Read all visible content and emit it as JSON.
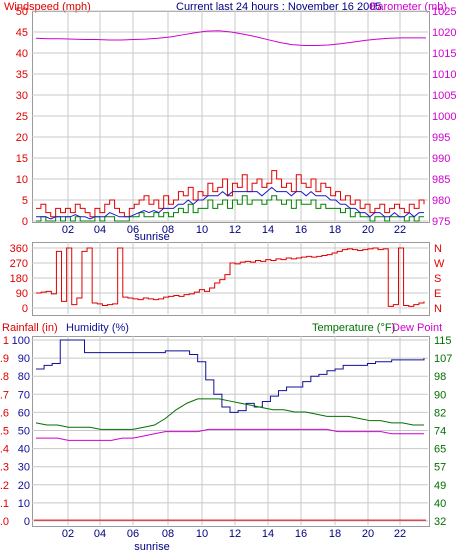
{
  "colors": {
    "wind": "#e00000",
    "baro": "#d000d0",
    "windavg": "#1a1acc",
    "windgust": "#008000",
    "dir": "#e00000",
    "rain": "#e00000",
    "humidity": "#10109a",
    "temperature": "#007000",
    "dewpoint": "#d000d0",
    "grid": "#c8c8c8",
    "tick": "#000080"
  },
  "chart_data": [
    {
      "type": "line",
      "title": "Current last 24 hours : November 16 2005",
      "ylabel": "Windspeed (mph)",
      "y2label": "Barometer (mb)",
      "xticks": [
        "02",
        "04",
        "06",
        "08",
        "10",
        "12",
        "14",
        "16",
        "18",
        "20",
        "22"
      ],
      "xmarker": "sunrise",
      "ylim": [
        0,
        50
      ],
      "yticks": [
        "0",
        "5",
        "10",
        "15",
        "20",
        "25",
        "30",
        "35",
        "40",
        "45",
        "50"
      ],
      "y2lim": [
        975,
        1025
      ],
      "y2ticks": [
        "975",
        "980",
        "985",
        "990",
        "995",
        "1000",
        "1005",
        "1010",
        "1015",
        "1020",
        "1025"
      ],
      "series": [
        {
          "key": "wind",
          "values": [
            3,
            4,
            2,
            1,
            3,
            2,
            3,
            2,
            4,
            3,
            2,
            1,
            3,
            2,
            4,
            5,
            3,
            2,
            1,
            3,
            4,
            5,
            6,
            4,
            5,
            3,
            6,
            4,
            5,
            7,
            6,
            8,
            5,
            7,
            6,
            9,
            7,
            8,
            10,
            6,
            9,
            8,
            11,
            7,
            9,
            10,
            8,
            9,
            12,
            10,
            8,
            9,
            7,
            11,
            9,
            8,
            10,
            7,
            9,
            8,
            6,
            7,
            5,
            6,
            4,
            5,
            3,
            4,
            2,
            3,
            4,
            2,
            3,
            4,
            3,
            2,
            4,
            3,
            5,
            4
          ]
        },
        {
          "key": "windavg",
          "values": [
            1,
            1,
            1,
            0.5,
            1,
            1,
            1,
            1,
            1.5,
            1,
            1,
            0.5,
            1,
            1,
            1,
            2,
            1.5,
            1,
            1,
            1,
            1.5,
            2,
            2.5,
            2,
            2.5,
            2,
            3,
            3,
            3,
            4,
            4,
            5,
            4,
            5,
            5,
            6,
            6,
            6,
            7,
            6,
            7,
            7,
            7,
            7,
            7,
            7,
            6,
            7,
            8,
            7,
            7,
            7,
            6,
            7,
            7,
            6,
            7,
            6,
            6,
            6,
            5,
            5,
            4,
            4,
            3,
            3,
            2,
            2,
            1,
            2,
            2,
            1,
            1,
            2,
            1,
            1,
            2,
            1,
            2,
            2
          ]
        },
        {
          "key": "windgust",
          "values": [
            0,
            1,
            0,
            0,
            1,
            0,
            1,
            0,
            1,
            0,
            0,
            0,
            1,
            0,
            1,
            1,
            0,
            0,
            0,
            1,
            1,
            2,
            1,
            1,
            2,
            1,
            2,
            1,
            2,
            3,
            2,
            4,
            2,
            3,
            3,
            5,
            3,
            4,
            5,
            3,
            5,
            4,
            6,
            4,
            5,
            5,
            4,
            5,
            6,
            5,
            4,
            5,
            3,
            5,
            4,
            4,
            5,
            3,
            4,
            3,
            3,
            3,
            2,
            3,
            1,
            2,
            1,
            1,
            0,
            1,
            1,
            0,
            1,
            1,
            1,
            0,
            1,
            0,
            1,
            1
          ]
        },
        {
          "key": "baro",
          "values": [
            1018.5,
            1018.4,
            1018.4,
            1018.3,
            1018.2,
            1018.2,
            1018.1,
            1018.1,
            1018.2,
            1018.3,
            1018.5,
            1018.8,
            1019.3,
            1019.8,
            1020.2,
            1020.3,
            1020.0,
            1019.5,
            1018.9,
            1018.2,
            1017.5,
            1017.0,
            1016.8,
            1016.8,
            1016.9,
            1017.2,
            1017.6,
            1018.0,
            1018.3,
            1018.5,
            1018.6,
            1018.6,
            1018.6
          ]
        }
      ]
    },
    {
      "type": "line",
      "xticks": [
        "02",
        "04",
        "06",
        "08",
        "10",
        "12",
        "14",
        "16",
        "18",
        "20",
        "22"
      ],
      "ylim": [
        0,
        360
      ],
      "yticks": [
        "0",
        "90",
        "180",
        "270",
        "360"
      ],
      "y2ticks": [
        "N",
        "E",
        "S",
        "W",
        "N"
      ],
      "series": [
        {
          "key": "dir",
          "values": [
            90,
            95,
            100,
            85,
            340,
            40,
            360,
            20,
            60,
            340,
            360,
            30,
            25,
            15,
            20,
            25,
            360,
            65,
            60,
            55,
            50,
            60,
            55,
            50,
            55,
            65,
            70,
            75,
            70,
            80,
            85,
            95,
            110,
            100,
            120,
            150,
            170,
            200,
            270,
            265,
            275,
            280,
            275,
            285,
            280,
            290,
            285,
            295,
            290,
            300,
            295,
            300,
            305,
            310,
            305,
            310,
            315,
            320,
            330,
            340,
            350,
            355,
            350,
            345,
            350,
            355,
            360,
            350,
            355,
            10,
            20,
            360,
            15,
            10,
            20,
            30,
            40
          ]
        }
      ]
    },
    {
      "type": "line",
      "xticks": [
        "02",
        "04",
        "06",
        "08",
        "10",
        "12",
        "14",
        "16",
        "18",
        "20",
        "22"
      ],
      "xmarker": "sunrise",
      "labels": {
        "rain": "Rainfall (in)",
        "humidity": "Humidity (%)",
        "temp": "Temperature (°F)",
        "dew": "Dew Point"
      },
      "ylim_humidity": [
        0,
        100
      ],
      "yticks_humidity": [
        "0",
        "10",
        "20",
        "30",
        "40",
        "50",
        "60",
        "70",
        "80",
        "90",
        "100"
      ],
      "yticks_rain": [
        ".0",
        ".1",
        ".2",
        ".3",
        ".4",
        ".5",
        ".6",
        ".7",
        ".8",
        ".9",
        "1"
      ],
      "ylim_temp": [
        32,
        115
      ],
      "y2ticks": [
        "32",
        "40",
        "49",
        "57",
        "65",
        "74",
        "82",
        "90",
        "98",
        "107",
        "115"
      ],
      "series": [
        {
          "key": "humidity",
          "values": [
            84,
            86,
            87,
            100,
            100,
            100,
            93,
            93,
            93,
            93,
            93,
            93,
            93,
            93,
            93,
            93,
            94,
            94,
            94,
            92,
            88,
            78,
            70,
            63,
            60,
            61,
            65,
            63,
            66,
            69,
            72,
            74,
            74,
            77,
            80,
            81,
            83,
            84,
            86,
            86,
            86,
            87,
            88,
            88,
            89,
            89,
            89,
            89,
            90
          ]
        },
        {
          "key": "temperature",
          "values": [
            77,
            76,
            76,
            75,
            75,
            75,
            74,
            74,
            74,
            74,
            75,
            76,
            79,
            83,
            86,
            88,
            88,
            88,
            87,
            86,
            85,
            84,
            83,
            83,
            82,
            82,
            81,
            80,
            80,
            80,
            79,
            78,
            78,
            77,
            77,
            76,
            76
          ]
        },
        {
          "key": "dewpoint",
          "values": [
            70,
            70,
            70,
            69,
            69,
            69,
            69,
            69,
            70,
            70,
            71,
            72,
            73,
            73,
            73,
            73,
            74,
            74,
            74,
            74,
            74,
            74,
            74,
            74,
            74,
            74,
            74,
            74,
            73,
            73,
            73,
            73,
            73,
            72,
            72,
            72,
            72
          ]
        },
        {
          "key": "rain",
          "values": [
            0.005,
            0.005,
            0.005,
            0.005,
            0.005,
            0.005,
            0.005,
            0.005,
            0.005,
            0.005,
            0.005,
            0.005,
            0.005
          ]
        }
      ]
    }
  ]
}
